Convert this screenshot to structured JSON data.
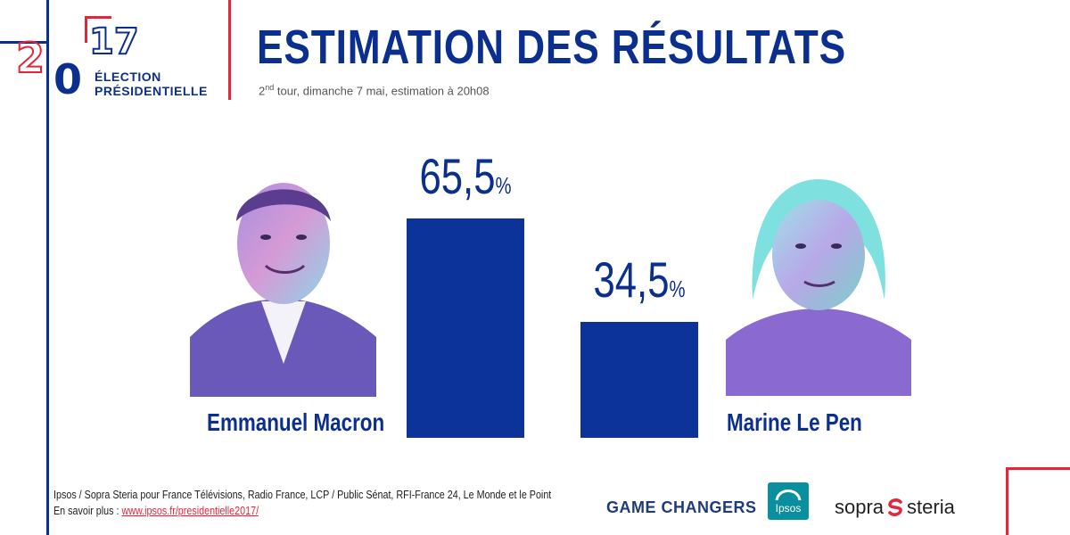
{
  "logo": {
    "year_top": "2",
    "year_right": "17",
    "year_bottom": "0",
    "line1": "ÉLECTION",
    "line2": "PRÉSIDENTIELLE"
  },
  "header": {
    "title": "ESTIMATION DES RÉSULTATS",
    "subtitle_pre": "2",
    "subtitle_sup": "nd",
    "subtitle_post": " tour, dimanche 7 mai, estimation à 20h08"
  },
  "chart_data": {
    "type": "bar",
    "categories": [
      "Emmanuel Macron",
      "Marine Le Pen"
    ],
    "values": [
      65.5,
      34.5
    ],
    "value_labels": [
      "65,5",
      "34,5"
    ],
    "unit": "%",
    "title": "ESTIMATION DES RÉSULTATS",
    "ylim": [
      0,
      100
    ],
    "grid": false,
    "bar_color": "#0b3399"
  },
  "footer": {
    "source": "Ipsos / Sopra Steria pour France Télévisions, Radio France, LCP / Public Sénat, RFI-France 24, Le Monde et le Point",
    "more_label": "En savoir plus : ",
    "more_link": "www.ipsos.fr/presidentielle2017/"
  },
  "sponsors": {
    "game_changers": "GAME CHANGERS",
    "ipsos": "Ipsos",
    "sopra": "sopra",
    "steria": "steria"
  },
  "colors": {
    "brand_blue": "#0b2f8f",
    "accent_red": "#e4253a"
  }
}
